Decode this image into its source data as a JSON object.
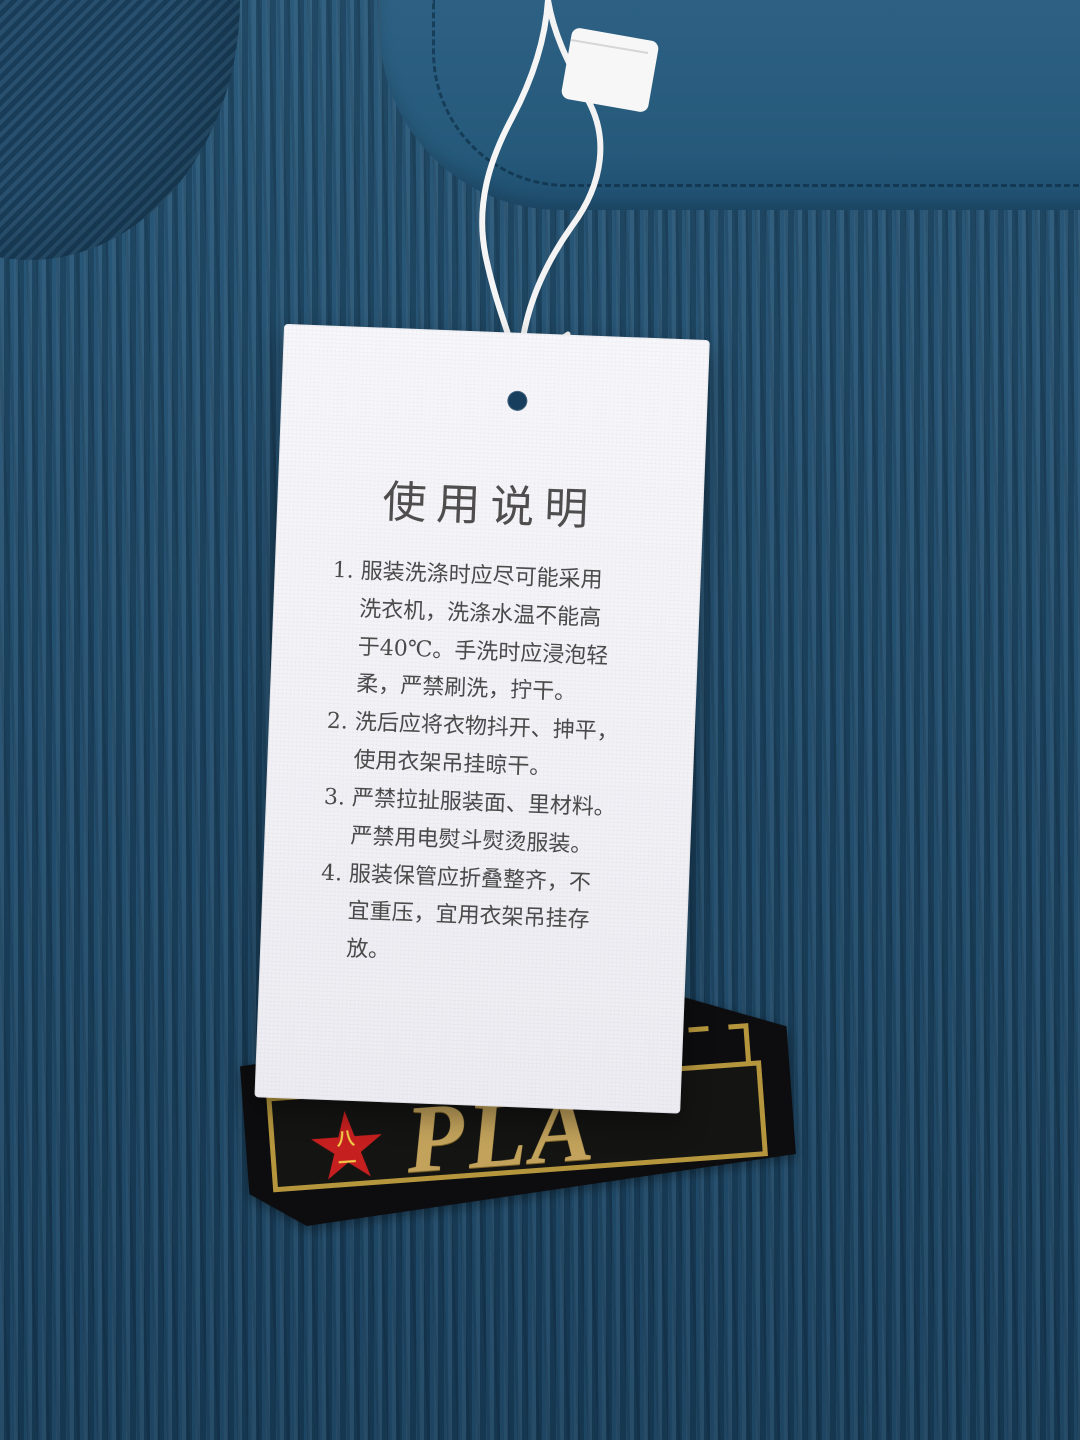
{
  "tag": {
    "title": "使用说明",
    "lines": [
      "1. 服装洗涤时应尽可能采用",
      "洗衣机，洗涤水温不能高",
      "于40℃。手洗时应浸泡轻",
      "柔，严禁刷洗，拧干。",
      "2. 洗后应将衣物抖开、抻平，",
      "使用衣架吊挂晾干。",
      "3. 严禁拉扯服装面、里材料。",
      "严禁用电熨斗熨烫服装。",
      "4. 服装保管应折叠整齐，不",
      "宜重压，宜用衣架吊挂存",
      "放。"
    ]
  },
  "label": {
    "brand": "PLA",
    "star_mark": "八一"
  },
  "colors": {
    "sweater": "#204c6c",
    "tag_paper": "#f1f1f6",
    "label_black": "#0d0d0f",
    "label_gold": "#b5963d",
    "star_red": "#c51f1f"
  }
}
